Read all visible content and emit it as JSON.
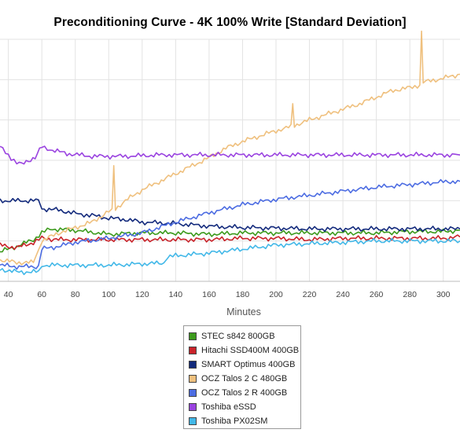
{
  "chart_data": {
    "type": "line",
    "title": "Preconditioning Curve - 4K 100% Write [Standard Deviation]",
    "xlabel": "Minutes",
    "ylabel": "",
    "x_tick_labels": [
      "40",
      "60",
      "80",
      "100",
      "120",
      "140",
      "160",
      "180",
      "200",
      "220",
      "240",
      "260",
      "280",
      "300"
    ],
    "x_ticks": [
      40,
      60,
      80,
      100,
      120,
      140,
      160,
      180,
      200,
      220,
      240,
      260,
      280,
      300
    ],
    "xlim": [
      35,
      310
    ],
    "ylim": [
      0,
      9
    ],
    "grid": true,
    "legend_position": "bottom",
    "series": [
      {
        "name": "STEC s842 800GB",
        "color": "#3c9a1c",
        "points": [
          [
            35,
            1.1
          ],
          [
            45,
            1.3
          ],
          [
            55,
            1.55
          ],
          [
            60,
            1.8
          ],
          [
            65,
            1.95
          ],
          [
            80,
            1.9
          ],
          [
            100,
            1.75
          ],
          [
            120,
            1.8
          ],
          [
            140,
            1.8
          ],
          [
            160,
            1.75
          ],
          [
            180,
            1.8
          ],
          [
            200,
            1.8
          ],
          [
            220,
            1.8
          ],
          [
            240,
            1.8
          ],
          [
            260,
            1.8
          ],
          [
            280,
            1.85
          ],
          [
            300,
            1.85
          ],
          [
            310,
            1.9
          ]
        ]
      },
      {
        "name": "Hitachi SSD400M 400GB",
        "color": "#c9232a",
        "points": [
          [
            35,
            1.35
          ],
          [
            45,
            1.25
          ],
          [
            55,
            1.45
          ],
          [
            60,
            1.6
          ],
          [
            70,
            1.55
          ],
          [
            100,
            1.55
          ],
          [
            120,
            1.55
          ],
          [
            140,
            1.55
          ],
          [
            160,
            1.55
          ],
          [
            180,
            1.6
          ],
          [
            200,
            1.6
          ],
          [
            220,
            1.55
          ],
          [
            240,
            1.6
          ],
          [
            260,
            1.6
          ],
          [
            280,
            1.6
          ],
          [
            300,
            1.6
          ],
          [
            310,
            1.65
          ]
        ]
      },
      {
        "name": "SMART Optimus 400GB",
        "color": "#132a7c",
        "points": [
          [
            35,
            3.0
          ],
          [
            58,
            3.0
          ],
          [
            60,
            2.7
          ],
          [
            70,
            2.65
          ],
          [
            82,
            2.5
          ],
          [
            90,
            2.45
          ],
          [
            100,
            2.35
          ],
          [
            110,
            2.3
          ],
          [
            120,
            2.2
          ],
          [
            140,
            2.15
          ],
          [
            160,
            2.05
          ],
          [
            180,
            2.0
          ],
          [
            200,
            1.98
          ],
          [
            220,
            1.95
          ],
          [
            240,
            1.95
          ],
          [
            260,
            1.95
          ],
          [
            280,
            1.95
          ],
          [
            300,
            1.95
          ],
          [
            310,
            1.95
          ]
        ]
      },
      {
        "name": "OCZ Talos 2 C 480GB",
        "color": "#efc07e",
        "points": [
          [
            35,
            0.8
          ],
          [
            45,
            0.7
          ],
          [
            55,
            0.7
          ],
          [
            60,
            1.5
          ],
          [
            70,
            1.8
          ],
          [
            80,
            2.0
          ],
          [
            90,
            2.2
          ],
          [
            100,
            2.6
          ],
          [
            102,
            2.7
          ],
          [
            103,
            4.3
          ],
          [
            104,
            2.7
          ],
          [
            110,
            3.0
          ],
          [
            120,
            3.4
          ],
          [
            130,
            3.7
          ],
          [
            140,
            4.0
          ],
          [
            150,
            4.3
          ],
          [
            160,
            4.6
          ],
          [
            170,
            4.95
          ],
          [
            180,
            5.2
          ],
          [
            190,
            5.4
          ],
          [
            200,
            5.6
          ],
          [
            209,
            5.75
          ],
          [
            210,
            6.6
          ],
          [
            211,
            5.8
          ],
          [
            220,
            6.0
          ],
          [
            230,
            6.2
          ],
          [
            240,
            6.4
          ],
          [
            250,
            6.6
          ],
          [
            260,
            6.85
          ],
          [
            270,
            7.1
          ],
          [
            280,
            7.2
          ],
          [
            286,
            7.3
          ],
          [
            287,
            9.3
          ],
          [
            288,
            7.4
          ],
          [
            300,
            7.55
          ],
          [
            310,
            7.7
          ]
        ]
      },
      {
        "name": "OCZ Talos 2 R 400GB",
        "color": "#4c6ce2",
        "points": [
          [
            35,
            0.6
          ],
          [
            45,
            0.55
          ],
          [
            58,
            0.55
          ],
          [
            60,
            1.2
          ],
          [
            70,
            1.3
          ],
          [
            80,
            1.45
          ],
          [
            100,
            1.6
          ],
          [
            110,
            1.7
          ],
          [
            120,
            1.8
          ],
          [
            130,
            2.0
          ],
          [
            140,
            2.2
          ],
          [
            160,
            2.55
          ],
          [
            180,
            2.85
          ],
          [
            200,
            3.05
          ],
          [
            220,
            3.2
          ],
          [
            240,
            3.35
          ],
          [
            260,
            3.5
          ],
          [
            280,
            3.6
          ],
          [
            300,
            3.7
          ],
          [
            310,
            3.72
          ]
        ]
      },
      {
        "name": "Toshiba eSSD",
        "color": "#9a43e0",
        "points": [
          [
            35,
            5.0
          ],
          [
            40,
            4.7
          ],
          [
            45,
            4.4
          ],
          [
            48,
            4.35
          ],
          [
            52,
            4.5
          ],
          [
            56,
            4.6
          ],
          [
            60,
            5.0
          ],
          [
            65,
            4.9
          ],
          [
            75,
            4.75
          ],
          [
            90,
            4.65
          ],
          [
            110,
            4.65
          ],
          [
            130,
            4.7
          ],
          [
            150,
            4.7
          ],
          [
            170,
            4.7
          ],
          [
            190,
            4.7
          ],
          [
            210,
            4.7
          ],
          [
            230,
            4.7
          ],
          [
            250,
            4.7
          ],
          [
            270,
            4.7
          ],
          [
            290,
            4.7
          ],
          [
            310,
            4.7
          ]
        ]
      },
      {
        "name": "Toshiba PX02SM",
        "color": "#42b8e8",
        "points": [
          [
            35,
            0.45
          ],
          [
            45,
            0.35
          ],
          [
            58,
            0.35
          ],
          [
            60,
            0.6
          ],
          [
            80,
            0.6
          ],
          [
            100,
            0.6
          ],
          [
            120,
            0.65
          ],
          [
            133,
            0.68
          ],
          [
            135,
            0.9
          ],
          [
            140,
            0.95
          ],
          [
            160,
            1.05
          ],
          [
            180,
            1.2
          ],
          [
            200,
            1.35
          ],
          [
            220,
            1.4
          ],
          [
            240,
            1.45
          ],
          [
            260,
            1.5
          ],
          [
            280,
            1.5
          ],
          [
            300,
            1.5
          ],
          [
            310,
            1.5
          ]
        ]
      }
    ]
  }
}
